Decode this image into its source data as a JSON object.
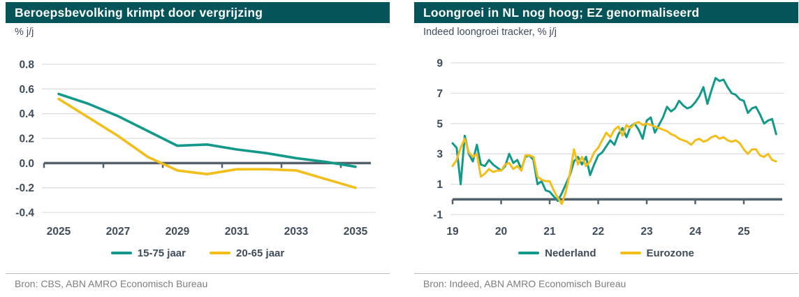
{
  "colors": {
    "header_bg": "#04545A",
    "header_text": "#FFFFFF",
    "axis": "#52616B",
    "tick_text": "#3E4C59",
    "gridline": "#DCDFE2",
    "divider": "#B9BCBE",
    "source_text": "#7D7D7D",
    "teal": "#12998A",
    "yellow": "#F2BE19"
  },
  "chart_data": [
    {
      "type": "line",
      "title": "Beroepsbevolking krimpt door vergrijzing",
      "subtitle": "% j/j",
      "source": "Bron: CBS, ABN AMRO Economisch Bureau",
      "x": [
        2025,
        2026,
        2027,
        2028,
        2029,
        2030,
        2031,
        2032,
        2033,
        2034,
        2035
      ],
      "x_tick_labels": [
        "2025",
        "2027",
        "2029",
        "2031",
        "2033",
        "2035"
      ],
      "ylim": [
        -0.4,
        0.8
      ],
      "yticks": [
        0.8,
        0.6,
        0.4,
        0.2,
        0.0,
        -0.2,
        -0.4
      ],
      "ytick_labels": [
        "0.8",
        "0.6",
        "0.4",
        "0.2",
        "0.0",
        "-0.2",
        "-0.4"
      ],
      "grid": true,
      "legend_position": "bottom",
      "series": [
        {
          "name": "15-75 jaar",
          "color": "#12998A",
          "values": [
            0.56,
            0.48,
            0.38,
            0.26,
            0.14,
            0.15,
            0.11,
            0.08,
            0.04,
            0.01,
            -0.03
          ]
        },
        {
          "name": "20-65 jaar",
          "color": "#F2BE19",
          "values": [
            0.52,
            0.37,
            0.22,
            0.05,
            -0.06,
            -0.09,
            -0.05,
            -0.05,
            -0.06,
            -0.13,
            -0.2
          ]
        }
      ]
    },
    {
      "type": "line",
      "title": "Loongroei in NL nog hoog; EZ genormaliseerd",
      "subtitle": "Indeed loongroei tracker, % j/j",
      "source": "Bron: Indeed, ABN AMRO Economisch Bureau",
      "x_frequency": "monthly",
      "x_start_year": 2019,
      "x_tick_labels": [
        "19",
        "20",
        "21",
        "22",
        "23",
        "24",
        "25"
      ],
      "ylim": [
        -1,
        9
      ],
      "yticks": [
        9,
        7,
        5,
        3,
        1,
        -1
      ],
      "ytick_labels": [
        "9",
        "7",
        "5",
        "3",
        "1",
        "-1"
      ],
      "grid": true,
      "legend_position": "bottom",
      "series": [
        {
          "name": "Nederland",
          "color": "#12998A",
          "values": [
            3.7,
            3.4,
            1.0,
            4.2,
            3.0,
            2.5,
            3.6,
            2.3,
            2.2,
            2.6,
            2.3,
            2.1,
            1.9,
            2.2,
            3.0,
            2.4,
            2.6,
            2.0,
            2.8,
            2.9,
            2.6,
            1.0,
            1.2,
            0.6,
            0.5,
            0.2,
            -0.1,
            0.4,
            1.0,
            1.6,
            2.5,
            2.8,
            2.3,
            2.8,
            1.6,
            2.3,
            2.9,
            3.1,
            3.5,
            3.9,
            3.6,
            4.3,
            4.7,
            4.1,
            4.8,
            5.0,
            4.6,
            4.0,
            5.2,
            5.4,
            4.4,
            4.9,
            5.4,
            6.1,
            5.8,
            6.0,
            6.5,
            6.2,
            6.0,
            6.1,
            6.4,
            6.8,
            7.4,
            6.3,
            7.2,
            8.0,
            7.8,
            7.9,
            7.4,
            7.0,
            6.9,
            6.6,
            6.5,
            5.7,
            6.0,
            6.1,
            5.6,
            5.0,
            5.2,
            5.3,
            4.3
          ]
        },
        {
          "name": "Eurozone",
          "color": "#F2BE19",
          "values": [
            2.2,
            2.6,
            3.4,
            4.0,
            3.1,
            2.8,
            3.0,
            1.5,
            1.7,
            2.0,
            1.8,
            1.9,
            1.9,
            2.3,
            2.4,
            2.0,
            2.2,
            1.9,
            2.9,
            2.9,
            2.8,
            1.5,
            1.3,
            1.2,
            1.2,
            0.6,
            0.1,
            -0.3,
            0.5,
            1.7,
            3.3,
            2.3,
            2.8,
            2.2,
            2.5,
            3.1,
            3.4,
            3.9,
            4.4,
            4.1,
            4.6,
            4.8,
            4.2,
            4.9,
            4.7,
            5.0,
            5.1,
            4.9,
            5.0,
            4.9,
            4.8,
            4.7,
            4.6,
            4.5,
            4.3,
            4.2,
            4.0,
            3.9,
            3.8,
            3.6,
            3.9,
            4.0,
            3.8,
            3.9,
            4.1,
            4.2,
            4.0,
            4.1,
            3.9,
            3.8,
            3.9,
            3.7,
            3.3,
            3.0,
            3.3,
            3.3,
            2.9,
            2.8,
            3.0,
            2.6,
            2.5
          ]
        }
      ]
    }
  ]
}
